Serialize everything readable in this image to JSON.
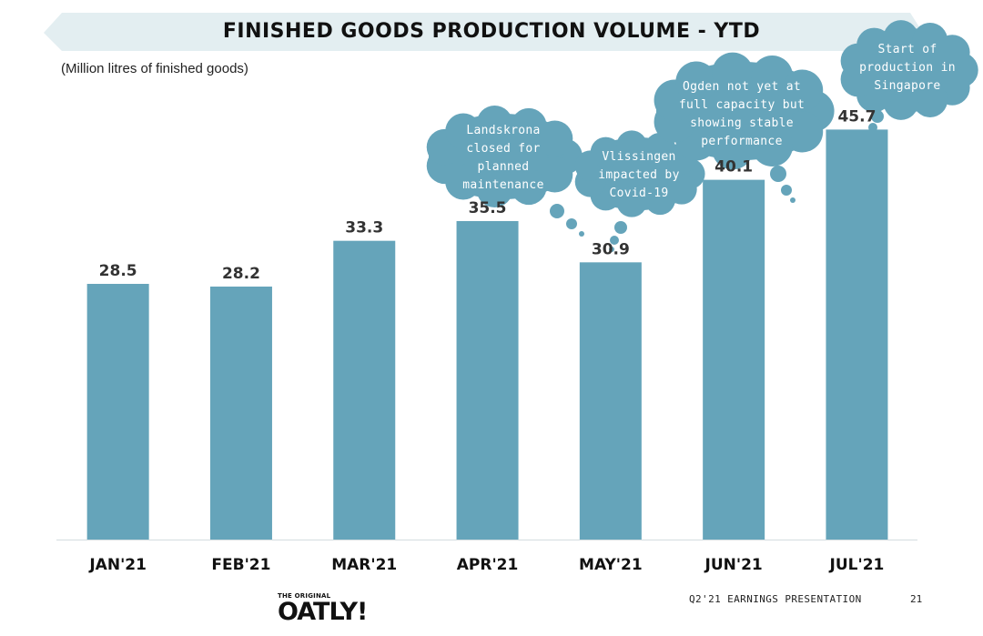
{
  "header": {
    "title": "FINISHED GOODS PRODUCTION VOLUME - YTD"
  },
  "unit_label": "(Million litres of finished goods)",
  "chart_data": {
    "type": "bar",
    "categories": [
      "JAN'21",
      "FEB'21",
      "MAR'21",
      "APR'21",
      "MAY'21",
      "JUN'21",
      "JUL'21"
    ],
    "values": [
      28.5,
      28.2,
      33.3,
      35.5,
      30.9,
      40.1,
      45.7
    ],
    "value_labels": [
      "28.5",
      "28.2",
      "33.3",
      "35.5",
      "30.9",
      "40.1",
      "45.7"
    ],
    "bar_color": "#65a4ba",
    "ylim": [
      0,
      50
    ],
    "grid": false,
    "annotations": [
      {
        "category": "APR'21",
        "text": "Landskrona closed for planned maintenance"
      },
      {
        "category": "MAY'21",
        "text": "Vlissingen impacted by Covid-19"
      },
      {
        "category": "JUN'21",
        "text": "Ogden not yet at full capacity but showing stable performance"
      },
      {
        "category": "JUL'21",
        "text": "Start of production in Singapore"
      }
    ]
  },
  "bubbles": {
    "landskrona": [
      "Landskrona",
      "closed for",
      "planned",
      "maintenance"
    ],
    "vlissingen": [
      "Vlissingen",
      "impacted by",
      "Covid-19"
    ],
    "ogden": [
      "Ogden not yet at",
      "full capacity but",
      "showing stable",
      "performance"
    ],
    "singapore": [
      "Start of",
      "production in",
      "Singapore"
    ]
  },
  "colors": {
    "bubble": "#65a4ba",
    "banner": "#e3eef1"
  },
  "footer": {
    "logo_small": "THE ORIGINAL",
    "logo": "OATLY!",
    "presentation": "Q2'21 EARNINGS PRESENTATION",
    "page": "21"
  }
}
